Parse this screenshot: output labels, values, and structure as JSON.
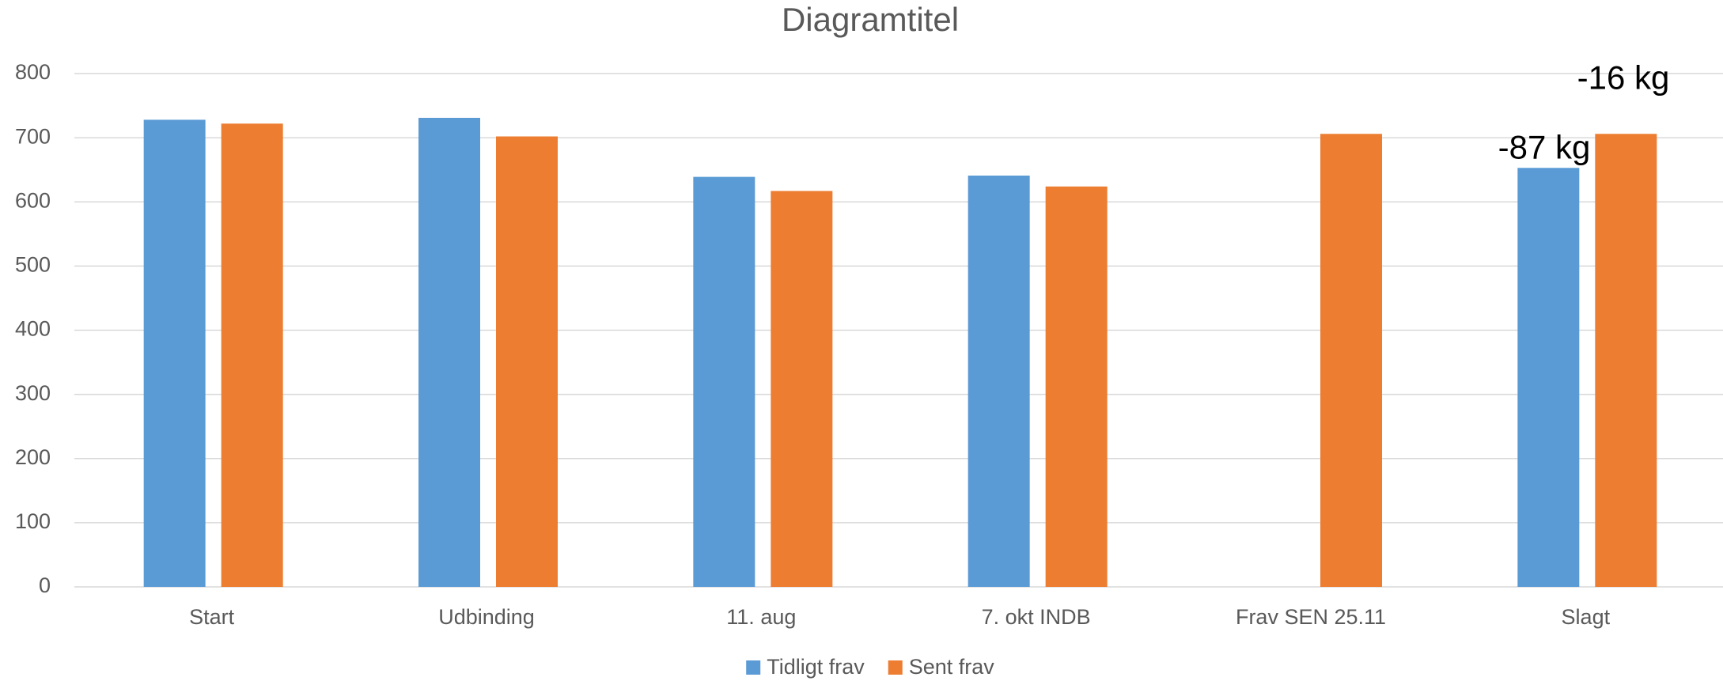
{
  "chart_data": {
    "type": "bar",
    "title": "Diagramtitel",
    "categories": [
      "Start",
      "Udbinding",
      "11. aug",
      "7. okt INDB",
      "Frav SEN 25.11",
      "Slagt"
    ],
    "series": [
      {
        "name": "Tidligt frav",
        "color": "#5b9bd5",
        "values": [
          728,
          731,
          639,
          641,
          null,
          653
        ]
      },
      {
        "name": "Sent frav",
        "color": "#ed7d31",
        "values": [
          722,
          702,
          617,
          624,
          706,
          706
        ]
      }
    ],
    "annotations": [
      "-87 kg",
      "-16 kg"
    ],
    "ylim": [
      0,
      800
    ],
    "yticks": [
      0,
      100,
      200,
      300,
      400,
      500,
      600,
      700,
      800
    ],
    "grid": true,
    "legend": "bottom"
  }
}
